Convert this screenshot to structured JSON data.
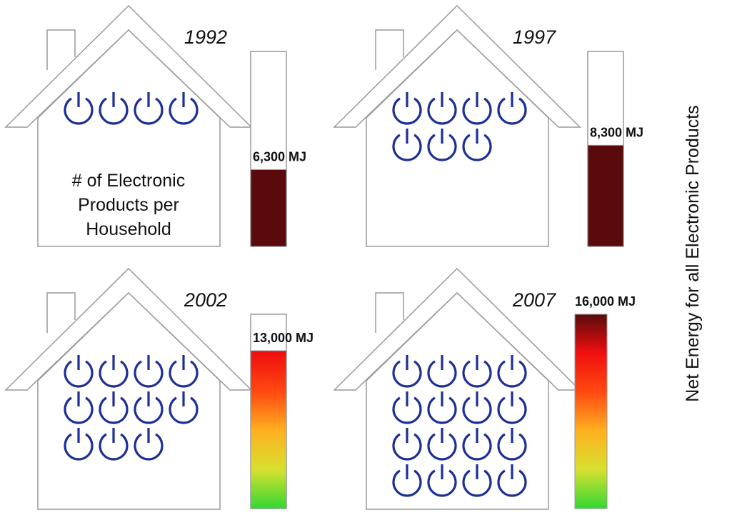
{
  "chart_data": {
    "type": "bar",
    "y_title": "Net Energy for all Electronic Products",
    "house_caption": [
      "# of Electronic",
      "Products per",
      "Household"
    ],
    "unit": "MJ",
    "ylim": [
      0,
      16000
    ],
    "categories": [
      "1992",
      "1997",
      "2002",
      "2007"
    ],
    "series": [
      {
        "name": "Net Energy for all Electronic Products",
        "values": [
          6300,
          8300,
          13000,
          16000
        ]
      },
      {
        "name": "# of Electronic Products per Household",
        "values": [
          4,
          7,
          11,
          16
        ]
      }
    ],
    "value_labels": [
      "6,300 MJ",
      "8,300 MJ",
      "13,000 MJ",
      "16,000 MJ"
    ]
  },
  "colors": {
    "outline": "#999999",
    "icon": "#1c2f96",
    "gradient": [
      "#32d832",
      "#d8e030",
      "#ffb020",
      "#ff4a10",
      "#f00f0f",
      "#5a0a0a"
    ]
  },
  "icons": {
    "product": "power-icon"
  }
}
